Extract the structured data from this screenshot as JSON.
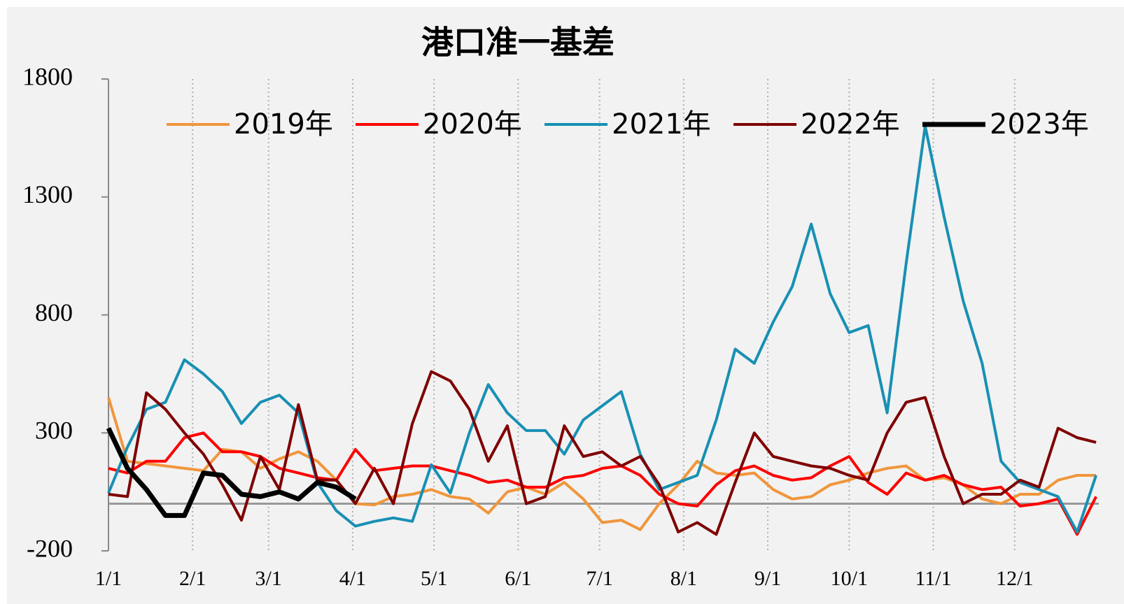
{
  "chart_data": {
    "type": "line",
    "title": "港口准一基差",
    "x": [
      1,
      8,
      15,
      22,
      29,
      36,
      43,
      50,
      57,
      64,
      71,
      78,
      85,
      92,
      99,
      106,
      113,
      120,
      127,
      134,
      141,
      148,
      155,
      162,
      169,
      176,
      183,
      190,
      197,
      204,
      211,
      218,
      225,
      232,
      239,
      246,
      253,
      260,
      267,
      274,
      281,
      288,
      295,
      302,
      309,
      316,
      323,
      330,
      337,
      344,
      351,
      358,
      365
    ],
    "xlim": [
      1,
      366
    ],
    "xticks": [
      {
        "value": 1,
        "label": "1/1"
      },
      {
        "value": 32,
        "label": "2/1"
      },
      {
        "value": 60,
        "label": "3/1"
      },
      {
        "value": 91,
        "label": "4/1"
      },
      {
        "value": 121,
        "label": "5/1"
      },
      {
        "value": 152,
        "label": "6/1"
      },
      {
        "value": 182,
        "label": "7/1"
      },
      {
        "value": 213,
        "label": "8/1"
      },
      {
        "value": 244,
        "label": "9/1"
      },
      {
        "value": 274,
        "label": "10/1"
      },
      {
        "value": 305,
        "label": "11/1"
      },
      {
        "value": 335,
        "label": "12/1"
      }
    ],
    "ylim": [
      -200,
      1800
    ],
    "yticks": [
      -200,
      300,
      800,
      1300,
      1800
    ],
    "xgrid": true,
    "legend": "top",
    "series": [
      {
        "name": "2019年",
        "color": "#f0963c",
        "linewidth": 4,
        "values": [
          450,
          180,
          170,
          160,
          150,
          140,
          230,
          220,
          150,
          190,
          220,
          180,
          100,
          0,
          -5,
          30,
          40,
          60,
          30,
          20,
          -40,
          50,
          70,
          40,
          90,
          20,
          -80,
          -70,
          -110,
          0,
          80,
          180,
          130,
          120,
          130,
          60,
          20,
          30,
          80,
          100,
          130,
          150,
          160,
          100,
          110,
          80,
          20,
          0,
          40,
          40,
          100,
          120,
          120
        ]
      },
      {
        "name": "2020年",
        "color": "#ff0000",
        "linewidth": 4,
        "values": [
          150,
          130,
          180,
          180,
          280,
          300,
          220,
          220,
          200,
          150,
          130,
          110,
          100,
          230,
          140,
          150,
          160,
          160,
          140,
          120,
          90,
          100,
          70,
          70,
          110,
          120,
          150,
          160,
          120,
          40,
          0,
          -10,
          80,
          140,
          160,
          120,
          100,
          110,
          160,
          200,
          90,
          40,
          130,
          100,
          120,
          80,
          60,
          70,
          -10,
          0,
          20,
          -130,
          30
        ]
      },
      {
        "name": "2021年",
        "color": "#1890b4",
        "linewidth": 4,
        "values": [
          45,
          240,
          400,
          430,
          610,
          550,
          475,
          340,
          430,
          460,
          385,
          90,
          -30,
          -95,
          -75,
          -60,
          -75,
          165,
          45,
          300,
          505,
          385,
          310,
          310,
          210,
          355,
          415,
          475,
          210,
          60,
          90,
          120,
          355,
          655,
          595,
          770,
          920,
          1185,
          890,
          725,
          755,
          385,
          1020,
          1600,
          1215,
          860,
          595,
          180,
          90,
          60,
          30,
          -120,
          120
        ]
      },
      {
        "name": "2022年",
        "color": "#7f0000",
        "linewidth": 4,
        "values": [
          40,
          30,
          470,
          400,
          300,
          210,
          80,
          -70,
          200,
          60,
          420,
          100,
          100,
          0,
          150,
          0,
          340,
          560,
          520,
          400,
          180,
          330,
          0,
          30,
          330,
          200,
          220,
          160,
          200,
          80,
          -120,
          -80,
          -130,
          90,
          300,
          200,
          180,
          160,
          150,
          120,
          100,
          300,
          430,
          450,
          200,
          0,
          40,
          40,
          100,
          70,
          320,
          280,
          260
        ]
      },
      {
        "name": "2023年",
        "color": "#000000",
        "linewidth": 7,
        "values": [
          320,
          150,
          60,
          -50,
          -50,
          130,
          120,
          40,
          30,
          50,
          20,
          90,
          70,
          20,
          null,
          null,
          null,
          null,
          null,
          null,
          null,
          null,
          null,
          null,
          null,
          null,
          null,
          null,
          null,
          null,
          null,
          null,
          null,
          null,
          null,
          null,
          null,
          null,
          null,
          null,
          null,
          null,
          null,
          null,
          null,
          null,
          null,
          null,
          null,
          null,
          null,
          null,
          null
        ]
      }
    ]
  }
}
